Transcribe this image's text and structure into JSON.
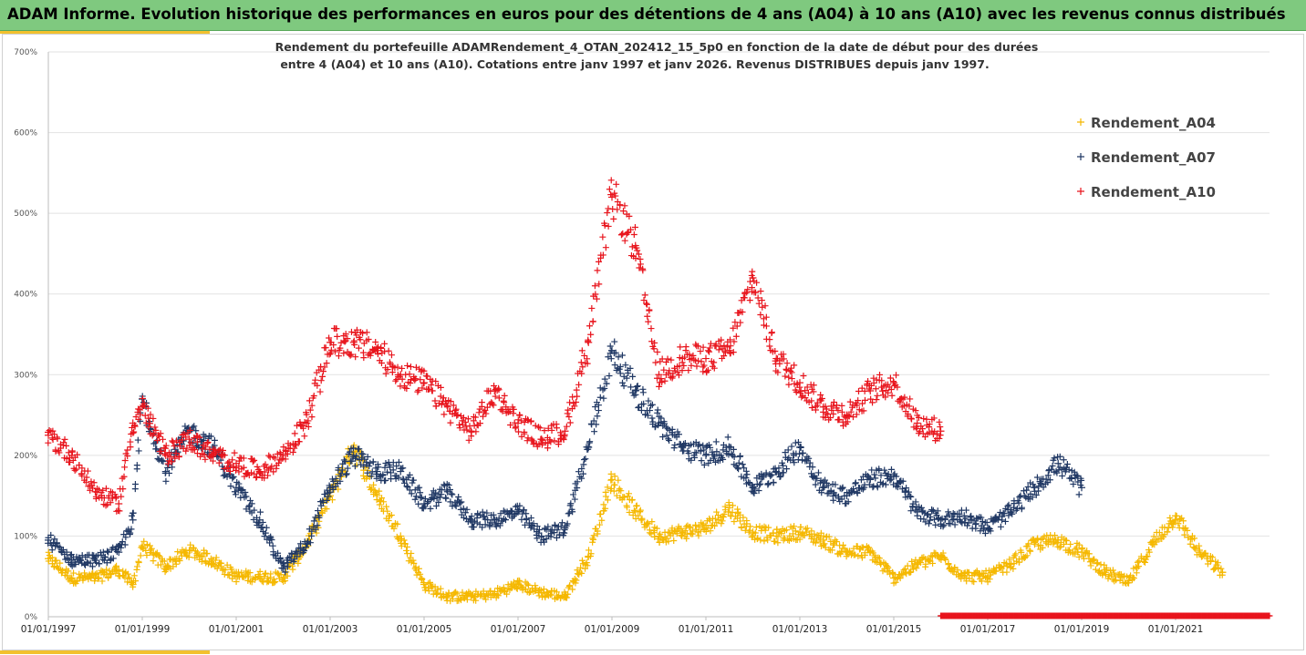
{
  "header": {
    "title": "ADAM Informe. Evolution historique des performances en euros pour des détentions de 4 ans (A04) à 10 ans (A10) avec les revenus connus distribués"
  },
  "colors": {
    "header_bg": "#7fc97f",
    "accent": "#f2c12e",
    "A04": "#f5b800",
    "A07": "#203864",
    "A10": "#e8141c"
  },
  "chart_data": {
    "type": "scatter",
    "subtitle_lines": [
      "Rendement du portefeuille ADAMRendement_4_OTAN_202412_15_5p0  en fonction de la date de début pour des durées",
      "entre 4 (A04) et 10 ans (A10). Cotations entre janv 1997 et janv 2026. Revenus DISTRIBUES depuis janv 1997."
    ],
    "x_ticks": [
      "01/01/1997",
      "01/01/1999",
      "01/01/2001",
      "01/01/2003",
      "01/01/2005",
      "01/01/2007",
      "01/01/2009",
      "01/01/2011",
      "01/01/2013",
      "01/01/2015",
      "01/01/2017",
      "01/01/2019",
      "01/01/2021"
    ],
    "y_ticks": [
      "0%",
      "100%",
      "200%",
      "300%",
      "400%",
      "500%",
      "600%",
      "700%"
    ],
    "xlim": [
      "01/01/1997",
      "01/01/2023"
    ],
    "ylim": [
      0,
      7
    ],
    "grid": "horizontal",
    "legend_position": "top-right",
    "series": [
      {
        "name": "Rendement_A04",
        "color": "#f5b800",
        "x": [
          1997.0,
          1997.5,
          1998.0,
          1998.5,
          1998.8,
          1999.0,
          1999.5,
          2000.0,
          2000.5,
          2001.0,
          2001.5,
          2002.0,
          2002.5,
          2003.0,
          2003.5,
          2004.0,
          2004.5,
          2005.0,
          2005.5,
          2006.0,
          2006.5,
          2007.0,
          2007.5,
          2008.0,
          2008.5,
          2009.0,
          2009.5,
          2010.0,
          2010.5,
          2011.0,
          2011.5,
          2012.0,
          2012.5,
          2013.0,
          2013.5,
          2014.0,
          2014.5,
          2015.0,
          2015.5,
          2016.0,
          2016.5,
          2017.0,
          2017.5,
          2018.0,
          2018.5,
          2019.0,
          2019.5,
          2020.0,
          2020.5,
          2021.0,
          2021.5,
          2022.0
        ],
        "y": [
          0.72,
          0.48,
          0.48,
          0.58,
          0.4,
          0.88,
          0.62,
          0.82,
          0.7,
          0.5,
          0.5,
          0.48,
          0.9,
          1.5,
          2.1,
          1.5,
          1.0,
          0.4,
          0.25,
          0.25,
          0.28,
          0.4,
          0.3,
          0.25,
          0.75,
          1.7,
          1.3,
          1.0,
          1.05,
          1.1,
          1.35,
          1.05,
          1.0,
          1.05,
          0.95,
          0.8,
          0.8,
          0.48,
          0.65,
          0.75,
          0.5,
          0.5,
          0.65,
          0.9,
          0.95,
          0.8,
          0.55,
          0.42,
          0.9,
          1.25,
          0.8,
          0.55
        ]
      },
      {
        "name": "Rendement_A07",
        "color": "#203864",
        "x": [
          1997.0,
          1997.5,
          1998.0,
          1998.5,
          1998.8,
          1999.0,
          1999.5,
          2000.0,
          2000.5,
          2001.0,
          2001.5,
          2002.0,
          2002.5,
          2003.0,
          2003.5,
          2004.0,
          2004.5,
          2005.0,
          2005.5,
          2006.0,
          2006.5,
          2007.0,
          2007.5,
          2008.0,
          2008.5,
          2009.0,
          2009.5,
          2010.0,
          2010.5,
          2011.0,
          2011.5,
          2012.0,
          2012.5,
          2013.0,
          2013.5,
          2014.0,
          2014.5,
          2015.0,
          2015.5,
          2016.0,
          2016.5,
          2017.0,
          2017.5,
          2018.0,
          2018.5,
          2019.0
        ],
        "y": [
          0.95,
          0.7,
          0.7,
          0.8,
          1.2,
          2.7,
          1.8,
          2.3,
          2.1,
          1.6,
          1.2,
          0.6,
          0.9,
          1.6,
          2.0,
          1.8,
          1.8,
          1.4,
          1.55,
          1.2,
          1.2,
          1.3,
          1.0,
          1.1,
          2.1,
          3.3,
          2.8,
          2.4,
          2.1,
          2.0,
          2.1,
          1.6,
          1.8,
          2.1,
          1.6,
          1.5,
          1.7,
          1.75,
          1.3,
          1.2,
          1.25,
          1.1,
          1.3,
          1.6,
          1.9,
          1.6
        ]
      },
      {
        "name": "Rendement_A10",
        "color": "#e8141c",
        "x": [
          1997.0,
          1997.5,
          1998.0,
          1998.5,
          1998.8,
          1999.0,
          1999.5,
          2000.0,
          2000.5,
          2001.0,
          2001.5,
          2002.0,
          2002.5,
          2003.0,
          2003.5,
          2004.0,
          2004.5,
          2005.0,
          2005.5,
          2006.0,
          2006.5,
          2007.0,
          2007.5,
          2008.0,
          2008.5,
          2009.0,
          2009.5,
          2010.0,
          2010.5,
          2011.0,
          2011.5,
          2012.0,
          2012.5,
          2013.0,
          2013.5,
          2014.0,
          2014.5,
          2015.0,
          2015.5,
          2016.0
        ],
        "y": [
          2.25,
          2.0,
          1.55,
          1.4,
          2.4,
          2.6,
          2.0,
          2.2,
          2.0,
          1.9,
          1.8,
          2.0,
          2.4,
          3.4,
          3.4,
          3.3,
          3.0,
          2.9,
          2.6,
          2.3,
          2.8,
          2.4,
          2.2,
          2.3,
          3.4,
          5.2,
          4.6,
          3.0,
          3.2,
          3.2,
          3.3,
          4.2,
          3.2,
          2.9,
          2.6,
          2.5,
          2.8,
          2.9,
          2.4,
          2.3
        ]
      }
    ],
    "zero_line_series": {
      "series": "Rendement_A10",
      "x_range": [
        "2016.0",
        "2023.0"
      ],
      "value": 0
    }
  }
}
